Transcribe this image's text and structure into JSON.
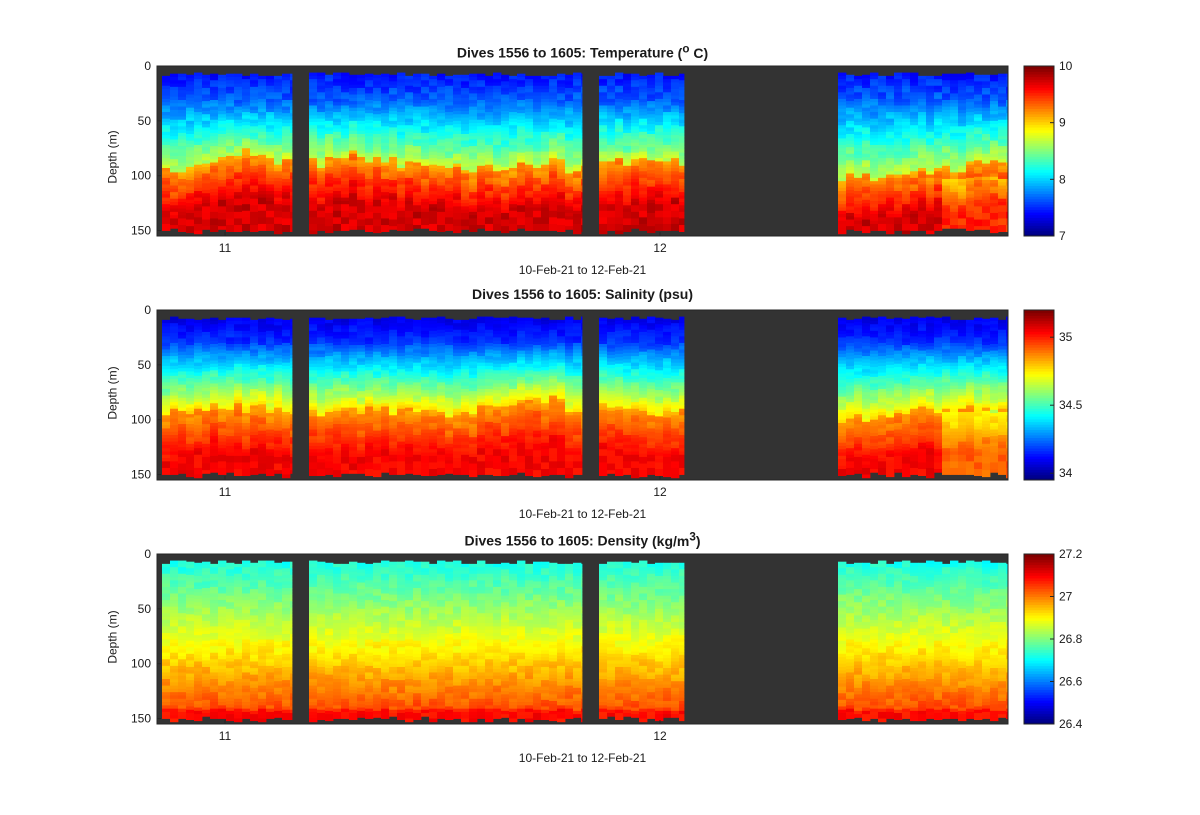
{
  "chart_data": [
    {
      "type": "heatmap",
      "title": "Dives 1556 to 1605: Temperature",
      "title_unit_html": "(<sup>o</sup> C)",
      "ylabel": "Depth (m)",
      "xlabel": "10-Feb-21 to 12-Feb-21",
      "x_ticks": [
        "11",
        "12"
      ],
      "y_ticks": [
        "0",
        "50",
        "100",
        "150"
      ],
      "ylim": [
        0,
        155
      ],
      "colorbar": {
        "colormap": "jet",
        "range": [
          7,
          10
        ],
        "ticks": [
          "7",
          "8",
          "9",
          "10"
        ]
      },
      "profile": {
        "surface": 7.4,
        "thermocline_depth_m": 95,
        "bottom": 9.7
      },
      "data_gaps": [
        "between first and second data block",
        "between second and third data block",
        "large gap before final block"
      ]
    },
    {
      "type": "heatmap",
      "title": "Dives 1556 to 1605: Salinity (psu)",
      "ylabel": "Depth (m)",
      "xlabel": "10-Feb-21 to 12-Feb-21",
      "x_ticks": [
        "11",
        "12"
      ],
      "y_ticks": [
        "0",
        "50",
        "100",
        "150"
      ],
      "ylim": [
        0,
        155
      ],
      "colorbar": {
        "colormap": "jet",
        "range": [
          33.95,
          35.2
        ],
        "ticks": [
          "34",
          "34.5",
          "35"
        ]
      },
      "profile": {
        "surface": 34.05,
        "halocline_depth_m": 95,
        "bottom": 35.05
      }
    },
    {
      "type": "heatmap",
      "title": "Dives 1556 to 1605: Density",
      "title_unit_html": "(kg/m<sup>3</sup>)",
      "ylabel": "Depth (m)",
      "xlabel": "10-Feb-21 to 12-Feb-21",
      "x_ticks": [
        "11",
        "12"
      ],
      "y_ticks": [
        "0",
        "50",
        "100",
        "150"
      ],
      "ylim": [
        0,
        155
      ],
      "colorbar": {
        "colormap": "jet",
        "range": [
          26.4,
          27.2
        ],
        "ticks": [
          "26.4",
          "26.6",
          "26.8",
          "27",
          "27.2"
        ]
      },
      "profile": {
        "surface": 26.68,
        "bottom": 27.02
      }
    }
  ],
  "colors": {
    "background_gap": "#333333",
    "axis": "#262626"
  }
}
